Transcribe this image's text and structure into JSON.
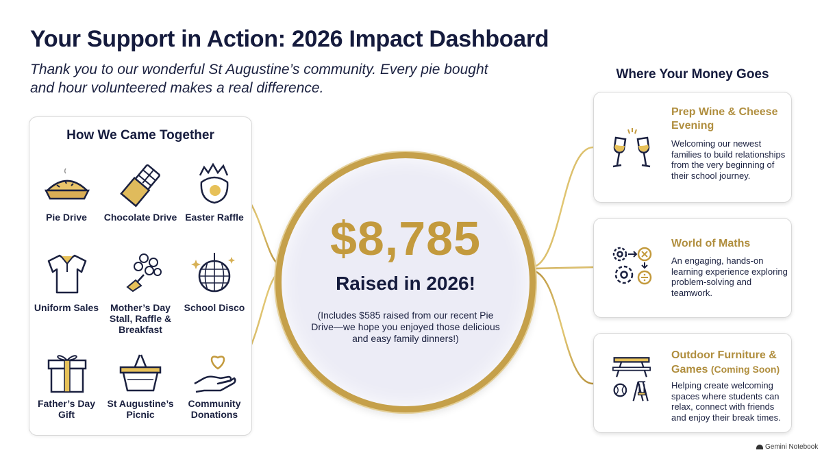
{
  "header": {
    "title": "Your Support in Action: 2026 Impact Dashboard",
    "subtitle": "Thank you to our wonderful St Augustine’s community. Every pie bought and hour volunteered makes a real difference."
  },
  "left_panel": {
    "heading": "How We Came Together",
    "activities": [
      {
        "label": "Pie Drive",
        "icon": "pie-icon"
      },
      {
        "label": "Chocolate Drive",
        "icon": "chocolate-bar-icon"
      },
      {
        "label": "Easter Raffle",
        "icon": "easter-egg-icon"
      },
      {
        "label": "Uniform Sales",
        "icon": "polo-shirt-icon"
      },
      {
        "label": "Mother’s Day Stall, Raffle & Breakfast",
        "icon": "flower-bouquet-icon"
      },
      {
        "label": "School Disco",
        "icon": "disco-ball-icon"
      },
      {
        "label": "Father’s Day Gift",
        "icon": "gift-box-icon"
      },
      {
        "label": "St Augustine’s Picnic",
        "icon": "picnic-basket-icon"
      },
      {
        "label": "Community Donations",
        "icon": "heart-hand-icon"
      }
    ]
  },
  "center": {
    "amount": "$8,785",
    "raised_label": "Raised in 2026!",
    "note": "(Includes $585 raised from our recent Pie Drive—we hope you enjoyed those delicious and easy family dinners!)"
  },
  "right_panel": {
    "heading": "Where Your Money Goes",
    "cards": [
      {
        "title": "Prep Wine & Cheese Evening",
        "title_suffix": "",
        "description": "Welcoming our newest families to build relationships from the very beginning of their school journey.",
        "icon": "wine-glasses-icon"
      },
      {
        "title": "World of Maths",
        "title_suffix": "",
        "description": "An engaging, hands-on learning experience exploring problem-solving and teamwork.",
        "icon": "gears-math-icon"
      },
      {
        "title": "Outdoor Furniture & Games",
        "title_suffix": "(Coming Soon)",
        "description": "Helping create welcoming spaces where students can relax, connect with friends and enjoy their break times.",
        "icon": "picnic-table-games-icon"
      }
    ]
  },
  "footer": {
    "brand": "Gemini Notebook"
  },
  "colors": {
    "navy": "#151b3d",
    "gold": "#c39a3d",
    "card_title_gold": "#b08e3e",
    "circle_fill": "#ececf6"
  }
}
